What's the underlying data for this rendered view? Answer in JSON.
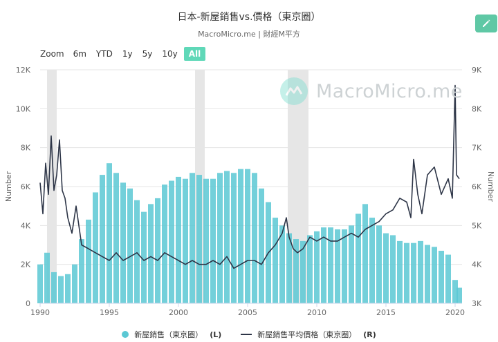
{
  "header": {
    "title": "日本-新屋銷售vs.價格（東京圈）",
    "subtitle": "MacroMicro.me | 財經M平方"
  },
  "toolbar": {
    "zoom_label": "Zoom",
    "buttons": [
      "6m",
      "YTD",
      "1y",
      "5y",
      "10y",
      "All"
    ],
    "active": "All"
  },
  "watermark": "MacroMicro.me",
  "legend": {
    "sales_label": "新屋銷售（東京圈）",
    "sales_tag": "(L)",
    "price_label": "新屋銷售平均價格（東京圈）",
    "price_tag": "(R)"
  },
  "colors": {
    "bars": "#5bc8d4",
    "line": "#2d3547",
    "recession": "#e6e6e6",
    "accent": "#5fc8a5"
  },
  "icons": {
    "edit": "pencil-icon"
  },
  "chart_data": {
    "type": "bar+line",
    "x_axis": {
      "range": [
        1990,
        2020.5
      ],
      "ticks": [
        "1990",
        "1995",
        "2000",
        "2005",
        "2010",
        "2015",
        "2020"
      ]
    },
    "y_left": {
      "label": "Number",
      "range": [
        0,
        12000
      ],
      "ticks": [
        "0",
        "2K",
        "4K",
        "6K",
        "8K",
        "10K",
        "12K"
      ]
    },
    "y_right": {
      "label": "Number",
      "range": [
        3000,
        9000
      ],
      "ticks": [
        "3K",
        "4K",
        "5K",
        "6K",
        "7K",
        "8K",
        "9K"
      ]
    },
    "recession_bands": [
      [
        1990.5,
        1991.2
      ],
      [
        2001.2,
        2001.9
      ],
      [
        2007.9,
        2009.4
      ]
    ],
    "series": [
      {
        "name": "新屋銷售（東京圈）",
        "axis": "left",
        "kind": "bar",
        "x": [
          1990.0,
          1990.5,
          1991.0,
          1991.5,
          1992.0,
          1992.5,
          1993.0,
          1993.5,
          1994.0,
          1994.5,
          1995.0,
          1995.5,
          1996.0,
          1996.5,
          1997.0,
          1997.5,
          1998.0,
          1998.5,
          1999.0,
          1999.5,
          2000.0,
          2000.5,
          2001.0,
          2001.5,
          2002.0,
          2002.5,
          2003.0,
          2003.5,
          2004.0,
          2004.5,
          2005.0,
          2005.5,
          2006.0,
          2006.5,
          2007.0,
          2007.5,
          2008.0,
          2008.5,
          2009.0,
          2009.5,
          2010.0,
          2010.5,
          2011.0,
          2011.5,
          2012.0,
          2012.5,
          2013.0,
          2013.5,
          2014.0,
          2014.5,
          2015.0,
          2015.5,
          2016.0,
          2016.5,
          2017.0,
          2017.5,
          2018.0,
          2018.5,
          2019.0,
          2019.5,
          2020.0,
          2020.3
        ],
        "values": [
          2000,
          2600,
          1600,
          1400,
          1500,
          2000,
          3300,
          4300,
          5700,
          6600,
          7200,
          6700,
          6200,
          5900,
          5300,
          4700,
          5100,
          5400,
          6100,
          6300,
          6500,
          6400,
          6700,
          6600,
          6400,
          6400,
          6700,
          6800,
          6700,
          6900,
          6900,
          6700,
          5900,
          5200,
          4400,
          4000,
          3600,
          3300,
          3200,
          3500,
          3700,
          3900,
          3900,
          3800,
          3800,
          4000,
          4600,
          5100,
          4400,
          4000,
          3600,
          3500,
          3200,
          3100,
          3100,
          3200,
          3000,
          2900,
          2700,
          2500,
          1200,
          800
        ]
      },
      {
        "name": "新屋銷售平均價格（東京圈）",
        "axis": "right",
        "kind": "line",
        "x": [
          1990.0,
          1990.2,
          1990.4,
          1990.6,
          1990.8,
          1991.0,
          1991.2,
          1991.4,
          1991.6,
          1991.8,
          1992.0,
          1992.3,
          1992.6,
          1993.0,
          1993.5,
          1994.0,
          1994.5,
          1995.0,
          1995.5,
          1996.0,
          1996.5,
          1997.0,
          1997.5,
          1998.0,
          1998.5,
          1999.0,
          1999.5,
          2000.0,
          2000.5,
          2001.0,
          2001.5,
          2002.0,
          2002.5,
          2003.0,
          2003.5,
          2004.0,
          2004.5,
          2005.0,
          2005.5,
          2006.0,
          2006.5,
          2007.0,
          2007.5,
          2007.8,
          2008.0,
          2008.3,
          2008.6,
          2009.0,
          2009.5,
          2010.0,
          2010.5,
          2011.0,
          2011.5,
          2012.0,
          2012.5,
          2013.0,
          2013.5,
          2014.0,
          2014.5,
          2015.0,
          2015.5,
          2016.0,
          2016.5,
          2016.8,
          2017.0,
          2017.3,
          2017.6,
          2018.0,
          2018.5,
          2019.0,
          2019.5,
          2019.8,
          2020.0,
          2020.1,
          2020.3
        ],
        "values": [
          6100,
          5300,
          6600,
          5800,
          7300,
          5900,
          6300,
          7200,
          5900,
          5700,
          5200,
          4800,
          5500,
          4500,
          4400,
          4300,
          4200,
          4100,
          4300,
          4100,
          4200,
          4300,
          4100,
          4200,
          4100,
          4300,
          4200,
          4100,
          4000,
          4100,
          4000,
          4000,
          4100,
          4000,
          4200,
          3900,
          4000,
          4100,
          4100,
          4000,
          4300,
          4500,
          4800,
          5200,
          4700,
          4400,
          4300,
          4400,
          4700,
          4600,
          4700,
          4600,
          4600,
          4700,
          4800,
          4700,
          4900,
          5000,
          5100,
          5300,
          5400,
          5700,
          5600,
          5200,
          6700,
          5800,
          5300,
          6300,
          6500,
          5800,
          6200,
          5700,
          8600,
          6300,
          6200
        ]
      }
    ]
  }
}
